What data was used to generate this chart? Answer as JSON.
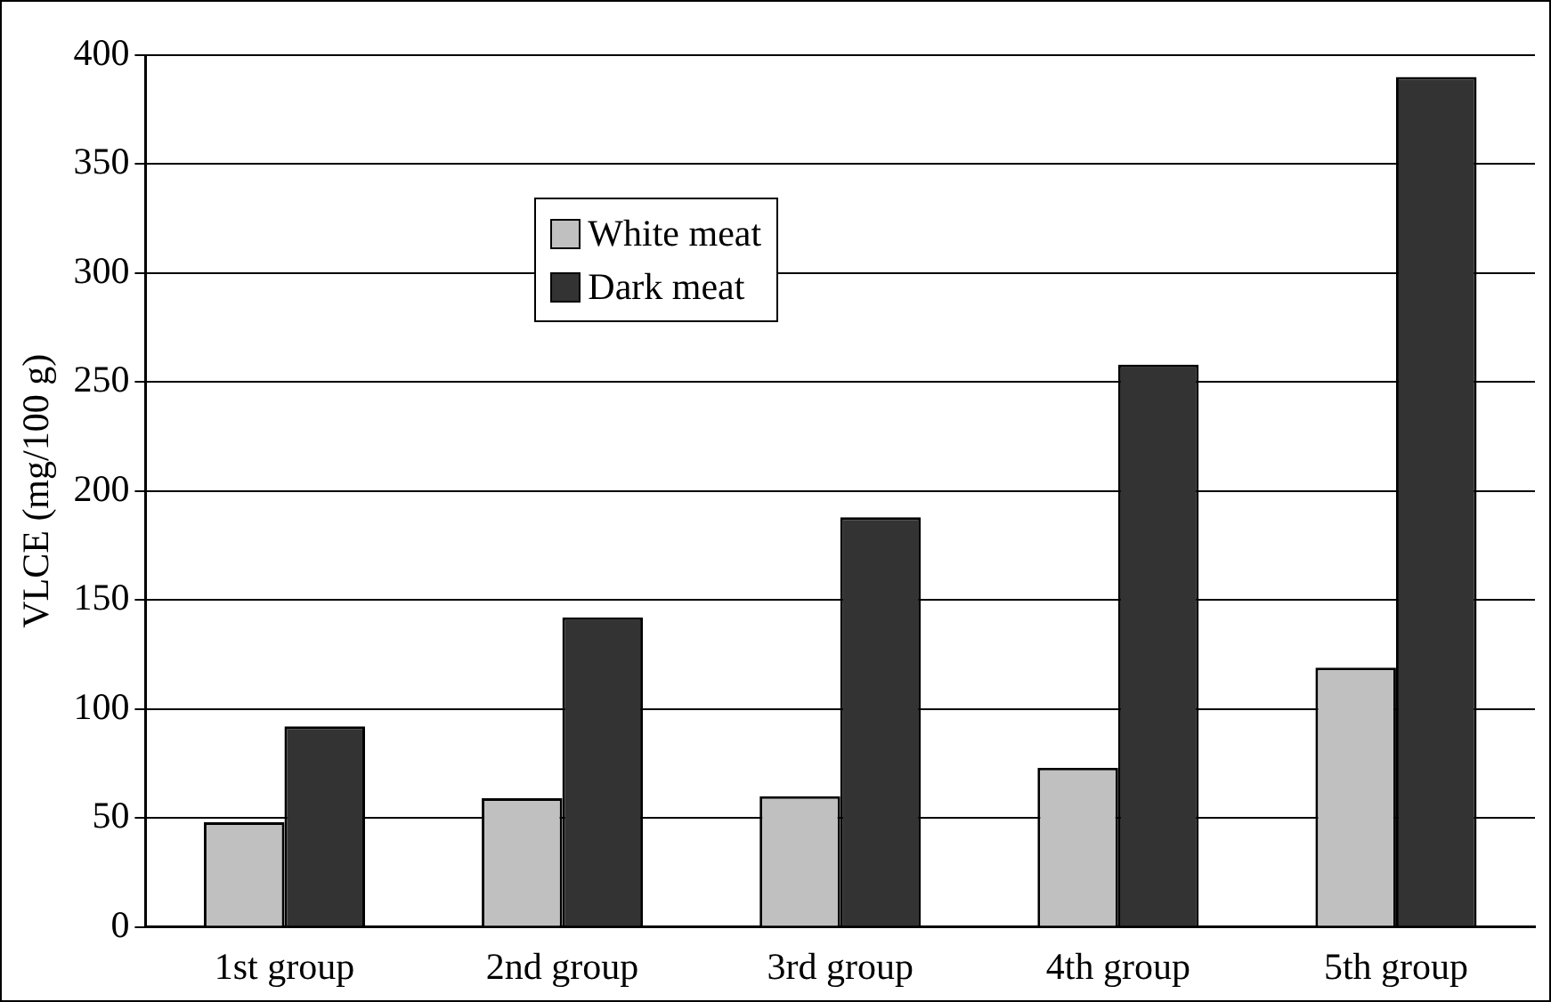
{
  "chart_data": {
    "type": "bar",
    "ylabel": "VLCE (mg/100 g)",
    "categories": [
      "1st group",
      "2nd group",
      "3rd group",
      "4th group",
      "5th group"
    ],
    "series": [
      {
        "name": "White meat",
        "color": "#c0c0c0",
        "values": [
          48,
          59,
          60,
          73,
          119
        ]
      },
      {
        "name": "Dark meat",
        "color": "#333333",
        "values": [
          92,
          142,
          188,
          258,
          390
        ]
      }
    ],
    "ylim": [
      0,
      400
    ],
    "yticks": [
      0,
      50,
      100,
      150,
      200,
      250,
      300,
      350,
      400
    ],
    "grid": "y",
    "legend": "top"
  }
}
